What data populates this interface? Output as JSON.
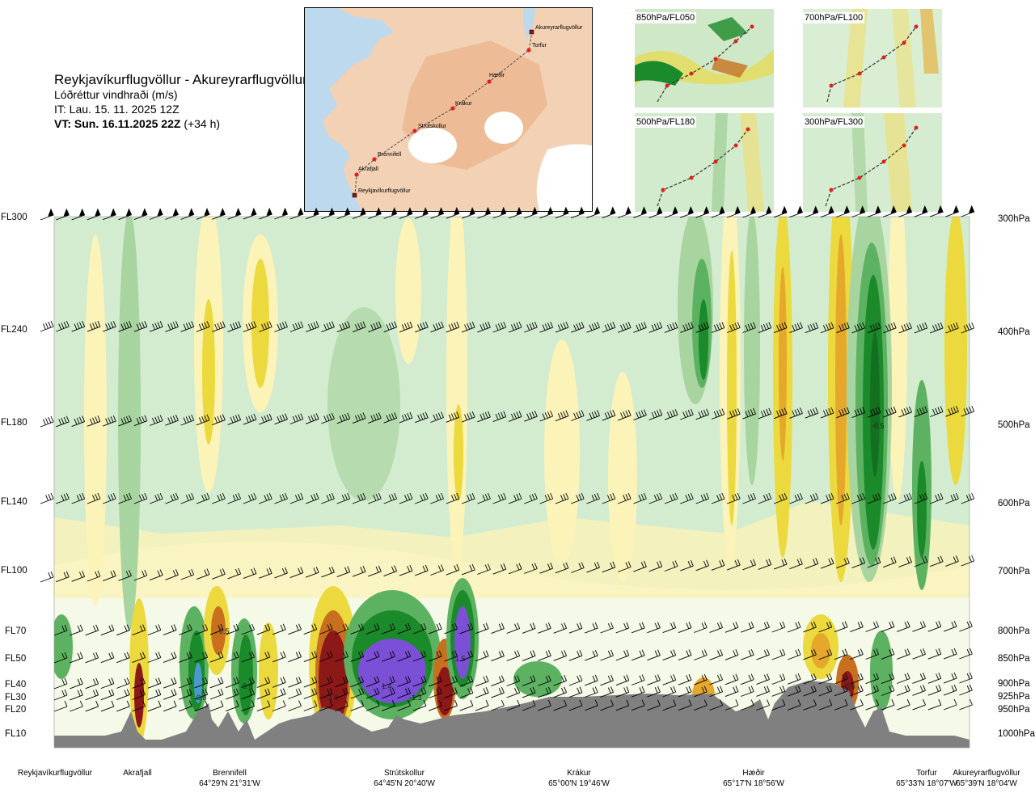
{
  "title": {
    "route": "Reykjavíkurflugvöllur - Akureyrarflugvöllur",
    "variable": "Lóðréttur vindhraði (m/s)",
    "issue_time": "IT: Lau. 15. 11. 2025 12Z",
    "valid_time": "VT: Sun. 16.11.2025 22Z",
    "forecast_hour": "(+34 h)"
  },
  "map": {
    "places": [
      "Akureyrarflugvöllur",
      "Torfur",
      "Hæðir",
      "Krákur",
      "Strútskollur",
      "Brennifell",
      "Akrafjall",
      "Reykjavíkurflugvöllur"
    ]
  },
  "insets": [
    {
      "label": "850hPa/FL050"
    },
    {
      "label": "700hPa/FL100"
    },
    {
      "label": "500hPa/FL180"
    },
    {
      "label": "300hPa/FL300"
    }
  ],
  "chart_data": {
    "type": "heatmap",
    "ylabel": "",
    "left_axis_flight_levels": [
      "FL300",
      "FL240",
      "FL180",
      "FL140",
      "FL100",
      "FL70",
      "FL50",
      "FL40",
      "FL30",
      "FL20",
      "FL10"
    ],
    "right_axis_pressure": [
      "300hPa",
      "400hPa",
      "500hPa",
      "600hPa",
      "700hPa",
      "800hPa",
      "850hPa",
      "900hPa",
      "925hPa",
      "950hPa",
      "1000hPa"
    ],
    "waypoints": [
      {
        "name": "Reykjavíkurflugvöllur",
        "coord": ""
      },
      {
        "name": "Akrafjall",
        "coord": ""
      },
      {
        "name": "Brennifell",
        "coord": "64°29'N 21°31'W"
      },
      {
        "name": "Strútskollur",
        "coord": "64°45'N 20°40'W"
      },
      {
        "name": "Krákur",
        "coord": "65°00'N 19°46'W"
      },
      {
        "name": "Hæðir",
        "coord": "65°17'N 18°56'W"
      },
      {
        "name": "Torfur",
        "coord": "65°33'N 18°07'W"
      },
      {
        "name": "Akureyrarflugvöllur",
        "coord": "65°39'N 18°04'W"
      }
    ],
    "color_scale": {
      "strong_up": "#7b4fd6",
      "up_2": "#4a9ad2",
      "up_1": "#1a8a2a",
      "up_0": "#5db262",
      "weak_up": "#a8d4a0",
      "near_zero": "#d3ecd0",
      "neutral": "#f4f9e8",
      "weak_down": "#fbf3b8",
      "down_0": "#ecd93e",
      "down_1": "#e6a82a",
      "down_2": "#c8701e",
      "strong_down": "#8c1818",
      "terrain": "#808080"
    },
    "contour_labels": [
      "-0.5",
      "-0.5",
      "0.8",
      "0.8",
      "-1.8",
      "1.4",
      "-1.3",
      "1.5",
      "-0.6"
    ]
  }
}
